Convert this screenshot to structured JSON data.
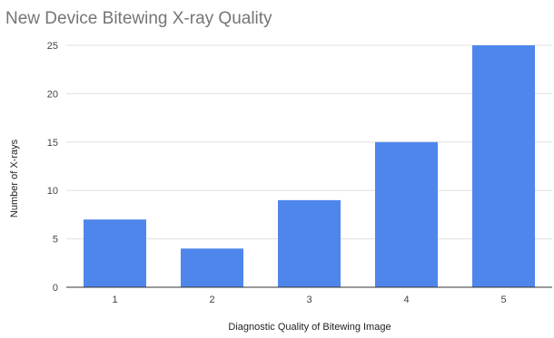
{
  "chart_data": {
    "type": "bar",
    "title": "New Device Bitewing X-ray Quality",
    "xlabel": "Diagnostic Quality of Bitewing Image",
    "ylabel": "Number of X-rays",
    "categories": [
      "1",
      "2",
      "3",
      "4",
      "5"
    ],
    "values": [
      7,
      4,
      9,
      15,
      25
    ],
    "ylim": [
      0,
      25
    ],
    "yticks": [
      "0",
      "5",
      "10",
      "15",
      "20",
      "25"
    ],
    "grid": true,
    "legend": "none",
    "bar_color": "#4e86ec"
  }
}
